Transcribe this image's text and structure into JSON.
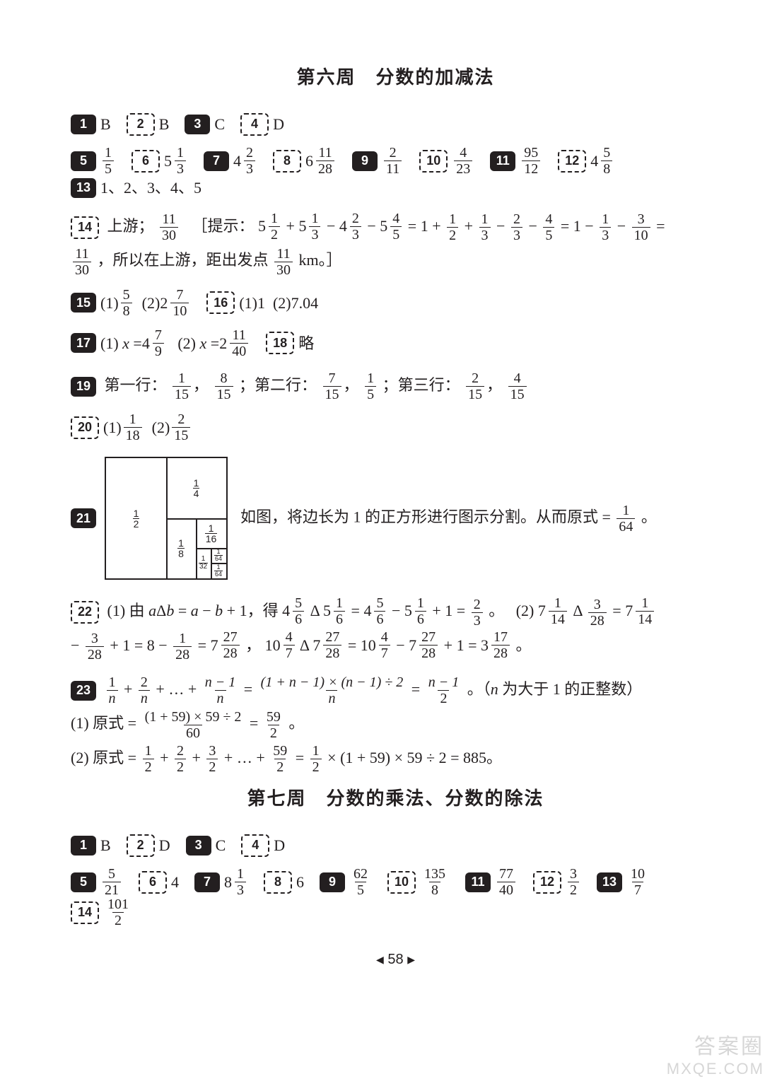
{
  "heading1": "第六周　分数的加减法",
  "heading2": "第七周　分数的乘法、分数的除法",
  "row1": {
    "a1": "B",
    "a2": "B",
    "a3": "C",
    "a4": "D"
  },
  "row2": {
    "a5_num": "1",
    "a5_den": "5",
    "a6_whole": "5",
    "a6_num": "1",
    "a6_den": "3",
    "a7_whole": "4",
    "a7_num": "2",
    "a7_den": "3",
    "a8_whole": "6",
    "a8_num": "11",
    "a8_den": "28",
    "a9_num": "2",
    "a9_den": "11",
    "a10_num": "4",
    "a10_den": "23",
    "a11_num": "95",
    "a11_den": "12",
    "a12_whole": "4",
    "a12_num": "5",
    "a12_den": "8",
    "a13": "1、2、3、4、5"
  },
  "q14": {
    "label": "上游；",
    "f_num": "11",
    "f_den": "30",
    "hint_open": "［提示：",
    "e_5a_w": "5",
    "e_5a_n": "1",
    "e_5a_d": "2",
    "e_5b_w": "5",
    "e_5b_n": "1",
    "e_5b_d": "3",
    "e_4a_w": "4",
    "e_4a_n": "2",
    "e_4a_d": "3",
    "e_5c_w": "5",
    "e_5c_n": "4",
    "e_5c_d": "5",
    "eq1": " = 1 + ",
    "f1n": "1",
    "f1d": "2",
    "f2n": "1",
    "f2d": "3",
    "f3n": "2",
    "f3d": "3",
    "f4n": "4",
    "f4d": "5",
    "eq2": " = 1 − ",
    "f5n": "1",
    "f5d": "3",
    "f6n": "3",
    "f6d": "10",
    "eq3": " = ",
    "tail": "，所以在上游，距出发点",
    "km": " km。］"
  },
  "q15a_n": "5",
  "q15a_d": "8",
  "q15b_w": "2",
  "q15b_n": "7",
  "q15b_d": "10",
  "q16a": "1",
  "q16b": "7.04",
  "q17a_lhs": "(1) x = ",
  "q17a_w": "4",
  "q17a_n": "7",
  "q17a_d": "9",
  "q17b_lhs": "(2) x = ",
  "q17b_w": "2",
  "q17b_n": "11",
  "q17b_d": "40",
  "q18": "略",
  "q19": {
    "r1": "第一行：",
    "a_n": "1",
    "a_d": "15",
    "b_n": "8",
    "b_d": "15",
    "r2": "；第二行：",
    "c_n": "7",
    "c_d": "15",
    "d_n": "1",
    "d_d": "5",
    "r3": "；第三行：",
    "e_n": "2",
    "e_d": "15",
    "f_n": "4",
    "f_d": "15"
  },
  "q20": {
    "a_n": "1",
    "a_d": "18",
    "b_n": "2",
    "b_d": "15"
  },
  "q21": {
    "lbl_half_n": "1",
    "lbl_half_d": "2",
    "lbl_q_n": "1",
    "lbl_q_d": "4",
    "lbl_8_n": "1",
    "lbl_8_d": "8",
    "lbl_16_n": "1",
    "lbl_16_d": "16",
    "lbl_32_n": "1",
    "lbl_32_d": "32",
    "lbl_64_n": "1",
    "lbl_64_d": "64",
    "caption": "如图，将边长为 1 的正方形进行图示分割。从而原式 = ",
    "ans_n": "1",
    "ans_d": "64",
    "period": "。"
  },
  "q22": {
    "p1": "(1) 由 aΔb = a − b + 1，得 ",
    "m1w": "4",
    "m1n": "5",
    "m1d": "6",
    "delta1": "Δ",
    "m2w": "5",
    "m2n": "1",
    "m2d": "6",
    "eq": " = ",
    "m3w": "4",
    "m3n": "5",
    "m3d": "6",
    "minus": " − ",
    "m4w": "5",
    "m4n": "1",
    "m4d": "6",
    "plus1": " + 1 = ",
    "r1n": "2",
    "r1d": "3",
    "dot": "。　",
    "p2": "(2) ",
    "m5w": "7",
    "m5n": "1",
    "m5d": "14",
    "delta2": "Δ",
    "f3n": "3",
    "f3d": "28",
    "eq2": " = ",
    "m6w": "7",
    "m6n": "1",
    "m6d": "14",
    "line2a": " − ",
    "f4n": "3",
    "f4d": "28",
    "plus2": " + 1 = 8 − ",
    "f5n": "1",
    "f5d": "28",
    "eq3": " = ",
    "m7w": "7",
    "m7n": "27",
    "m7d": "28",
    "comma": "， ",
    "m8w": "10",
    "m8n": "4",
    "m8d": "7",
    "delta3": "Δ",
    "m9w": "7",
    "m9n": "27",
    "m9d": "28",
    "eq4": " = ",
    "m10w": "10",
    "m10n": "4",
    "m10d": "7",
    "minus2": " − ",
    "m11w": "7",
    "m11n": "27",
    "m11d": "28",
    "plus3": " + 1 = ",
    "m12w": "3",
    "m12n": "17",
    "m12d": "28",
    "dot2": "。"
  },
  "q23": {
    "lead_f1n": "1",
    "lead_d": "n",
    "lead_f2n": "2",
    "dots": " + … + ",
    "lastn": "n − 1",
    "eq": " = ",
    "bign": "(1 + n − 1) × (n − 1) ÷ 2",
    "bigd": "n",
    "eq2": " = ",
    "r_n": "n − 1",
    "r_d": "2",
    "tail": "。（n 为大于 1 的正整数）",
    "p1": "(1) 原式 = ",
    "f1n": "(1 + 59) × 59 ÷ 2",
    "f1d": "60",
    "eq3": " = ",
    "r1n": "59",
    "r1d": "2",
    "dot": "。",
    "p2": "(2) 原式 = ",
    "s1n": "1",
    "s2n": "2",
    "s3n": "3",
    "sd": "2",
    "dots2": " + … + ",
    "s59n": "59",
    "eq4": " = ",
    "half_n": "1",
    "half_d": "2",
    "mult": " × (1 + 59) × 59 ÷ 2 = 885。"
  },
  "row3": {
    "a1": "B",
    "a2": "D",
    "a3": "C",
    "a4": "D"
  },
  "row4": {
    "a5_n": "5",
    "a5_d": "21",
    "a6": "4",
    "a7_w": "8",
    "a7_n": "1",
    "a7_d": "3",
    "a8": "6",
    "a9_n": "62",
    "a9_d": "5",
    "a10_n": "135",
    "a10_d": "8",
    "a11_n": "77",
    "a11_d": "40",
    "a12_n": "3",
    "a12_d": "2",
    "a13_n": "10",
    "a13_d": "7",
    "a14_n": "101",
    "a14_d": "2"
  },
  "labels": {
    "n1": "1",
    "n2": "2",
    "n3": "3",
    "n4": "4",
    "n5": "5",
    "n6": "6",
    "n7": "7",
    "n8": "8",
    "n9": "9",
    "n10": "10",
    "n11": "11",
    "n12": "12",
    "n13": "13",
    "n14": "14",
    "n15": "15",
    "n16": "16",
    "n17": "17",
    "n18": "18",
    "n19": "19",
    "n20": "20",
    "n21": "21",
    "n22": "22",
    "n23": "23",
    "paren1": "(1) ",
    "paren2": "(2) "
  },
  "pagenum": "58",
  "watermark": {
    "cn": "答案圈",
    "en": "MXQE.COM"
  }
}
